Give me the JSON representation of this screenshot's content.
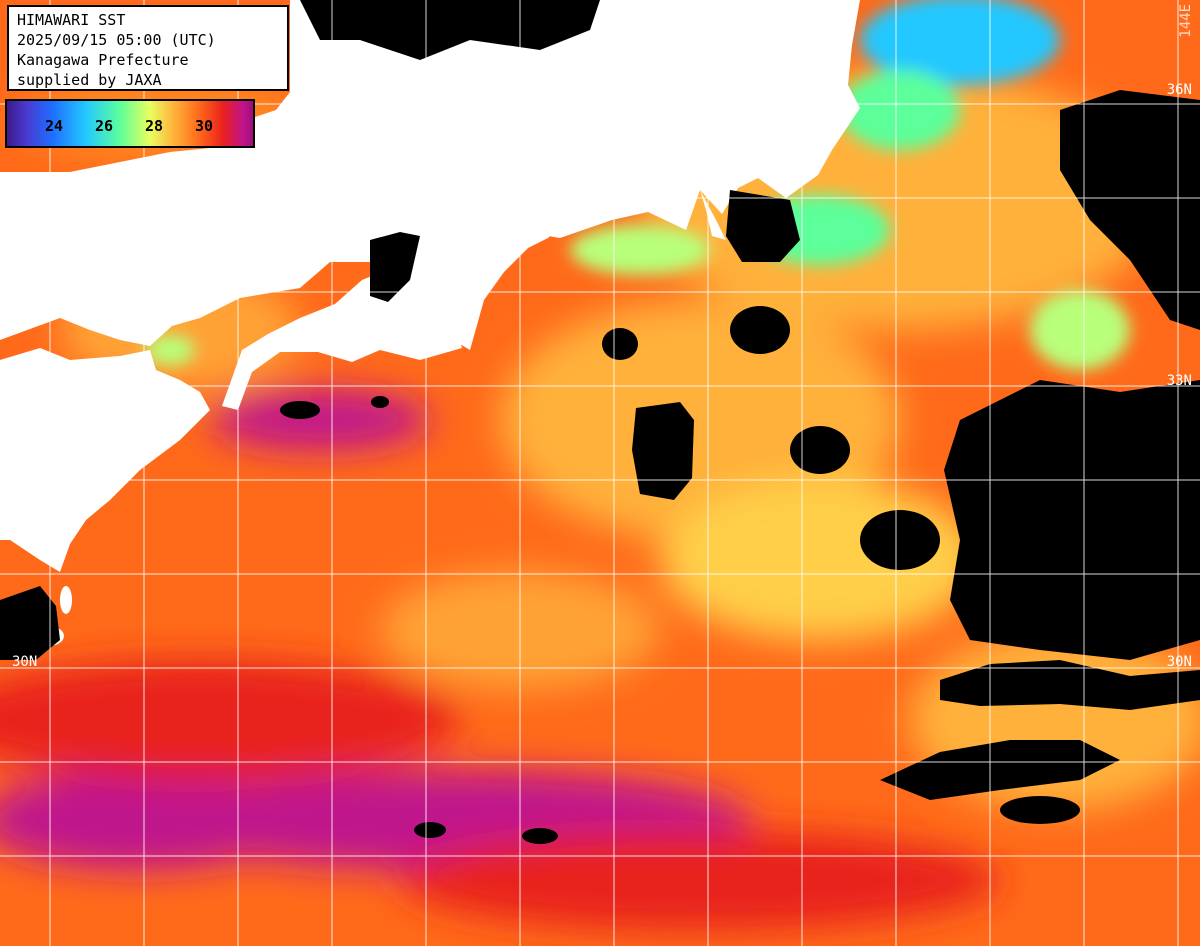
{
  "title": {
    "line1": "HIMAWARI SST",
    "line2": "2025/09/15 05:00 (UTC)",
    "line3": "Kanagawa Prefecture",
    "line4": "supplied by JAXA"
  },
  "legend": {
    "ticks": [
      "24",
      "26",
      "28",
      "30"
    ]
  },
  "latitude_labels": {
    "n36": "36N",
    "n33": "33N",
    "n30_left": "30N",
    "n30_right": "30N"
  },
  "longitude_label": "144E",
  "colors": {
    "land": "#ffffff",
    "cloud_nodata": "#000000",
    "grid": "#ffffff",
    "sst_warm": "#ff6a1a",
    "sst_hot": "#e8201e",
    "sst_hottest": "#c0148c",
    "sst_cool": "#5cff9a",
    "sst_coolest": "#22c8ff"
  }
}
